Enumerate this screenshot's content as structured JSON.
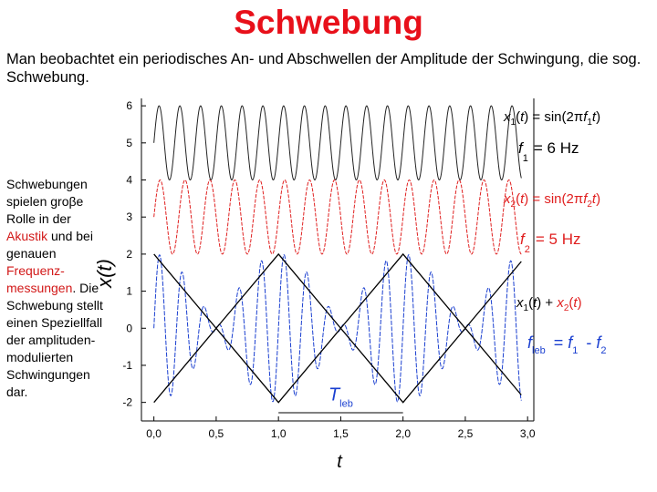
{
  "title": "Schwebung",
  "intro": "Man beobachtet ein periodisches An- und Abschwellen der Amplitude der Schwingung, die sog. Schwebung.",
  "side_text": {
    "part1": "Schwebungen spielen groβe Rolle in der ",
    "akustik": "Akustik",
    "part2": " und bei genauen ",
    "frequenz": "Frequenz-messungen",
    "part3": ". Die Schwebung stellt einen Speziellfall der amplituden-modulierten Schwingungen dar."
  },
  "chart_data": {
    "type": "line",
    "title": "",
    "xlabel": "t",
    "ylabel": "x(t)",
    "xlim": [
      -0.1,
      3.05
    ],
    "ylim": [
      -2.5,
      6.2
    ],
    "x_ticks": [
      0.0,
      0.5,
      1.0,
      1.5,
      2.0,
      2.5,
      3.0
    ],
    "x_tick_labels": [
      "0,0",
      "0,5",
      "1,0",
      "1,5",
      "2,0",
      "2,5",
      "3,0"
    ],
    "y_ticks": [
      -2,
      -1,
      0,
      1,
      2,
      3,
      4,
      5,
      6
    ],
    "y_tick_labels": [
      "-2",
      "-1",
      "0",
      "1",
      "2",
      "3",
      "4",
      "5",
      "6"
    ],
    "series": [
      {
        "name": "x1(t) = sin(2πf1t)",
        "frequency_hz": 6,
        "offset": 5,
        "amplitude": 1,
        "color": "#222222"
      },
      {
        "name": "x2(t) = sin(2πf2t)",
        "frequency_hz": 5,
        "offset": 3,
        "amplitude": 1,
        "color": "#e02020"
      },
      {
        "name": "x1(t) + x2(t)",
        "components_hz": [
          6,
          5
        ],
        "offset": 0,
        "amplitude": 1,
        "color": "#1a3fd0",
        "envelope_color": "#000000",
        "envelope_amplitude": 2,
        "beat_frequency_hz": 1
      }
    ],
    "annotations": {
      "f1_value": "= 6 Hz",
      "f2_value": "= 5 Hz",
      "beat_period_label": "T",
      "beat_period_sub": "leb",
      "beat_period_range": [
        1.0,
        2.0
      ]
    }
  }
}
